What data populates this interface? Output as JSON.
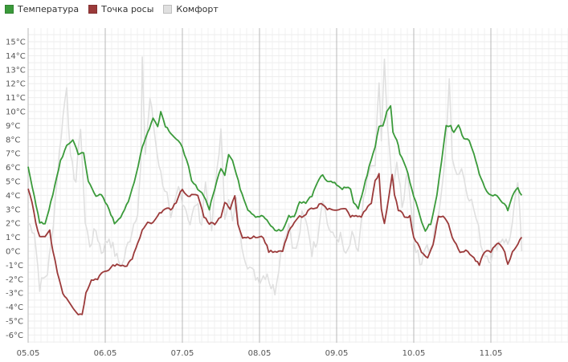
{
  "chart_data": {
    "type": "line",
    "x_categories": [
      "05.05",
      "06.05",
      "07.05",
      "08.05",
      "09.05",
      "10.05",
      "11.05"
    ],
    "ylim": [
      -6.5,
      16
    ],
    "y_ticks": [
      "-6°C",
      "-5°C",
      "-4°C",
      "-3°C",
      "-2°C",
      "-1°C",
      "0°C",
      "1°C",
      "2°C",
      "3°C",
      "4°C",
      "5°C",
      "6°C",
      "7°C",
      "8°C",
      "9°C",
      "10°C",
      "11°C",
      "12°C",
      "13°C",
      "14°C",
      "15°C"
    ],
    "y_tick_values": [
      -6,
      -5,
      -4,
      -3,
      -2,
      -1,
      0,
      1,
      2,
      3,
      4,
      5,
      6,
      7,
      8,
      9,
      10,
      11,
      12,
      13,
      14,
      15
    ],
    "y_unit": "°C",
    "grid": true,
    "legend_position": "top-left",
    "series": [
      {
        "name": "Комфорт",
        "color": "#e0e0e0",
        "points": [
          [
            0,
            2.0
          ],
          [
            0.08,
            1.5
          ],
          [
            0.15,
            -2.5
          ],
          [
            0.25,
            -1.5
          ],
          [
            0.3,
            0.5
          ],
          [
            0.38,
            5.5
          ],
          [
            0.43,
            8.5
          ],
          [
            0.5,
            12.0
          ],
          [
            0.55,
            6.5
          ],
          [
            0.62,
            5.0
          ],
          [
            0.68,
            9.0
          ],
          [
            0.74,
            2.0
          ],
          [
            0.8,
            0.5
          ],
          [
            0.88,
            1.5
          ],
          [
            0.95,
            0.0
          ],
          [
            1.05,
            1.0
          ],
          [
            1.15,
            -0.5
          ],
          [
            1.22,
            -1.0
          ],
          [
            1.32,
            1.0
          ],
          [
            1.42,
            3.0
          ],
          [
            1.46,
            6.0
          ],
          [
            1.48,
            13.5
          ],
          [
            1.52,
            7.0
          ],
          [
            1.58,
            11.0
          ],
          [
            1.65,
            8.0
          ],
          [
            1.72,
            5.5
          ],
          [
            1.8,
            4.0
          ],
          [
            1.85,
            2.0
          ],
          [
            1.95,
            4.5
          ],
          [
            2.05,
            3.0
          ],
          [
            2.1,
            2.0
          ],
          [
            2.18,
            3.5
          ],
          [
            2.25,
            2.0
          ],
          [
            2.3,
            5.0
          ],
          [
            2.38,
            1.5
          ],
          [
            2.45,
            6.0
          ],
          [
            2.5,
            8.5
          ],
          [
            2.55,
            2.5
          ],
          [
            2.6,
            4.0
          ],
          [
            2.65,
            2.0
          ],
          [
            2.7,
            3.5
          ],
          [
            2.75,
            1.0
          ],
          [
            2.82,
            -0.5
          ],
          [
            2.9,
            -1.5
          ],
          [
            3.0,
            -2.0
          ],
          [
            3.1,
            -1.5
          ],
          [
            3.15,
            -2.5
          ],
          [
            3.2,
            -2.8
          ],
          [
            3.25,
            -1.0
          ],
          [
            3.3,
            0.5
          ],
          [
            3.38,
            2.0
          ],
          [
            3.45,
            0.0
          ],
          [
            3.5,
            0.5
          ],
          [
            3.55,
            2.5
          ],
          [
            3.62,
            2.0
          ],
          [
            3.68,
            0.0
          ],
          [
            3.75,
            1.0
          ],
          [
            3.82,
            4.0
          ],
          [
            3.88,
            2.0
          ],
          [
            3.95,
            1.0
          ],
          [
            4.05,
            1.0
          ],
          [
            4.12,
            -0.5
          ],
          [
            4.2,
            1.0
          ],
          [
            4.28,
            0.0
          ],
          [
            4.35,
            3.5
          ],
          [
            4.42,
            5.5
          ],
          [
            4.5,
            6.5
          ],
          [
            4.55,
            12.0
          ],
          [
            4.58,
            8.0
          ],
          [
            4.62,
            13.5
          ],
          [
            4.66,
            9.0
          ],
          [
            4.72,
            4.5
          ],
          [
            4.78,
            6.5
          ],
          [
            4.85,
            3.0
          ],
          [
            4.92,
            6.0
          ],
          [
            5.0,
            1.0
          ],
          [
            5.08,
            -1.0
          ],
          [
            5.15,
            0.5
          ],
          [
            5.22,
            0.0
          ],
          [
            5.3,
            2.0
          ],
          [
            5.36,
            4.0
          ],
          [
            5.42,
            8.0
          ],
          [
            5.46,
            12.0
          ],
          [
            5.5,
            7.0
          ],
          [
            5.56,
            5.5
          ],
          [
            5.62,
            6.0
          ],
          [
            5.68,
            4.5
          ],
          [
            5.72,
            4.0
          ],
          [
            5.78,
            3.0
          ],
          [
            5.84,
            1.5
          ],
          [
            5.9,
            0.0
          ],
          [
            6.0,
            -0.5
          ],
          [
            6.08,
            0.5
          ],
          [
            6.15,
            1.0
          ],
          [
            6.22,
            0.5
          ],
          [
            6.28,
            2.0
          ],
          [
            6.35,
            5.0
          ],
          [
            6.4,
            0.0
          ]
        ]
      },
      {
        "name": "Температура",
        "color": "#3a9a3a",
        "points": [
          [
            0,
            6.0
          ],
          [
            0.08,
            4.0
          ],
          [
            0.15,
            2.0
          ],
          [
            0.22,
            2.0
          ],
          [
            0.32,
            4.0
          ],
          [
            0.42,
            6.5
          ],
          [
            0.5,
            7.5
          ],
          [
            0.58,
            8.0
          ],
          [
            0.65,
            7.0
          ],
          [
            0.72,
            7.0
          ],
          [
            0.78,
            5.0
          ],
          [
            0.88,
            4.0
          ],
          [
            0.95,
            4.0
          ],
          [
            1.05,
            3.0
          ],
          [
            1.12,
            2.0
          ],
          [
            1.2,
            2.5
          ],
          [
            1.3,
            3.5
          ],
          [
            1.4,
            5.5
          ],
          [
            1.48,
            7.5
          ],
          [
            1.55,
            8.5
          ],
          [
            1.62,
            9.5
          ],
          [
            1.68,
            9.0
          ],
          [
            1.72,
            10.0
          ],
          [
            1.78,
            9.0
          ],
          [
            1.85,
            8.5
          ],
          [
            1.92,
            8.0
          ],
          [
            2.0,
            7.5
          ],
          [
            2.08,
            6.0
          ],
          [
            2.12,
            5.0
          ],
          [
            2.2,
            4.5
          ],
          [
            2.28,
            4.0
          ],
          [
            2.35,
            3.0
          ],
          [
            2.42,
            4.5
          ],
          [
            2.5,
            6.0
          ],
          [
            2.55,
            5.5
          ],
          [
            2.6,
            7.0
          ],
          [
            2.65,
            6.5
          ],
          [
            2.7,
            5.5
          ],
          [
            2.75,
            4.5
          ],
          [
            2.85,
            3.0
          ],
          [
            2.95,
            2.5
          ],
          [
            3.05,
            2.5
          ],
          [
            3.12,
            2.0
          ],
          [
            3.2,
            1.5
          ],
          [
            3.25,
            1.5
          ],
          [
            3.3,
            1.5
          ],
          [
            3.38,
            2.5
          ],
          [
            3.45,
            2.5
          ],
          [
            3.52,
            3.5
          ],
          [
            3.6,
            3.5
          ],
          [
            3.68,
            4.0
          ],
          [
            3.75,
            5.0
          ],
          [
            3.82,
            5.5
          ],
          [
            3.88,
            5.0
          ],
          [
            3.95,
            5.0
          ],
          [
            4.05,
            4.5
          ],
          [
            4.12,
            4.5
          ],
          [
            4.18,
            4.5
          ],
          [
            4.22,
            3.5
          ],
          [
            4.28,
            3.0
          ],
          [
            4.35,
            4.5
          ],
          [
            4.42,
            6.0
          ],
          [
            4.5,
            7.5
          ],
          [
            4.55,
            9.0
          ],
          [
            4.6,
            9.0
          ],
          [
            4.65,
            10.0
          ],
          [
            4.7,
            10.5
          ],
          [
            4.73,
            8.5
          ],
          [
            4.78,
            8.0
          ],
          [
            4.82,
            7.0
          ],
          [
            4.9,
            6.0
          ],
          [
            5.0,
            4.0
          ],
          [
            5.08,
            2.5
          ],
          [
            5.15,
            1.5
          ],
          [
            5.22,
            2.0
          ],
          [
            5.3,
            4.0
          ],
          [
            5.36,
            6.5
          ],
          [
            5.42,
            9.0
          ],
          [
            5.48,
            9.0
          ],
          [
            5.52,
            8.5
          ],
          [
            5.58,
            9.0
          ],
          [
            5.65,
            8.0
          ],
          [
            5.72,
            8.0
          ],
          [
            5.78,
            7.0
          ],
          [
            5.85,
            5.5
          ],
          [
            5.92,
            4.5
          ],
          [
            6.0,
            4.0
          ],
          [
            6.08,
            4.0
          ],
          [
            6.15,
            3.5
          ],
          [
            6.22,
            3.0
          ],
          [
            6.28,
            4.0
          ],
          [
            6.35,
            4.5
          ],
          [
            6.4,
            4.0
          ]
        ]
      },
      {
        "name": "Точка росы",
        "color": "#9b3a3a",
        "points": [
          [
            0,
            4.5
          ],
          [
            0.05,
            3.5
          ],
          [
            0.1,
            2.0
          ],
          [
            0.15,
            1.0
          ],
          [
            0.22,
            1.0
          ],
          [
            0.28,
            1.5
          ],
          [
            0.32,
            0.0
          ],
          [
            0.38,
            -1.5
          ],
          [
            0.45,
            -3.0
          ],
          [
            0.52,
            -3.5
          ],
          [
            0.58,
            -4.0
          ],
          [
            0.65,
            -4.5
          ],
          [
            0.7,
            -4.5
          ],
          [
            0.75,
            -3.0
          ],
          [
            0.82,
            -2.0
          ],
          [
            0.9,
            -2.0
          ],
          [
            0.95,
            -1.5
          ],
          [
            1.02,
            -1.5
          ],
          [
            1.1,
            -1.0
          ],
          [
            1.2,
            -1.0
          ],
          [
            1.28,
            -1.0
          ],
          [
            1.35,
            -0.5
          ],
          [
            1.42,
            0.5
          ],
          [
            1.48,
            1.5
          ],
          [
            1.55,
            2.0
          ],
          [
            1.62,
            2.0
          ],
          [
            1.68,
            2.5
          ],
          [
            1.75,
            3.0
          ],
          [
            1.85,
            3.0
          ],
          [
            1.92,
            3.5
          ],
          [
            2.0,
            4.5
          ],
          [
            2.05,
            4.0
          ],
          [
            2.12,
            4.0
          ],
          [
            2.2,
            4.0
          ],
          [
            2.28,
            2.5
          ],
          [
            2.35,
            2.0
          ],
          [
            2.42,
            2.0
          ],
          [
            2.5,
            2.5
          ],
          [
            2.55,
            3.5
          ],
          [
            2.62,
            3.0
          ],
          [
            2.68,
            4.0
          ],
          [
            2.72,
            2.0
          ],
          [
            2.78,
            1.0
          ],
          [
            2.85,
            1.0
          ],
          [
            2.95,
            1.0
          ],
          [
            3.05,
            1.0
          ],
          [
            3.12,
            0.0
          ],
          [
            3.2,
            0.0
          ],
          [
            3.3,
            0.0
          ],
          [
            3.38,
            1.5
          ],
          [
            3.45,
            2.0
          ],
          [
            3.52,
            2.5
          ],
          [
            3.58,
            2.5
          ],
          [
            3.65,
            3.0
          ],
          [
            3.72,
            3.0
          ],
          [
            3.8,
            3.5
          ],
          [
            3.88,
            3.0
          ],
          [
            3.95,
            3.0
          ],
          [
            4.05,
            3.0
          ],
          [
            4.12,
            3.0
          ],
          [
            4.18,
            2.5
          ],
          [
            4.25,
            2.5
          ],
          [
            4.32,
            2.5
          ],
          [
            4.38,
            3.0
          ],
          [
            4.45,
            3.5
          ],
          [
            4.5,
            5.0
          ],
          [
            4.55,
            5.5
          ],
          [
            4.58,
            3.0
          ],
          [
            4.62,
            2.0
          ],
          [
            4.68,
            4.0
          ],
          [
            4.72,
            5.5
          ],
          [
            4.75,
            4.0
          ],
          [
            4.8,
            3.0
          ],
          [
            4.88,
            2.5
          ],
          [
            4.95,
            2.5
          ],
          [
            5.0,
            1.0
          ],
          [
            5.05,
            0.5
          ],
          [
            5.1,
            0.0
          ],
          [
            5.18,
            -0.5
          ],
          [
            5.25,
            0.5
          ],
          [
            5.32,
            2.5
          ],
          [
            5.38,
            2.5
          ],
          [
            5.45,
            2.0
          ],
          [
            5.5,
            1.0
          ],
          [
            5.55,
            0.5
          ],
          [
            5.6,
            0.0
          ],
          [
            5.7,
            0.0
          ],
          [
            5.78,
            -0.5
          ],
          [
            5.85,
            -1.0
          ],
          [
            5.92,
            0.0
          ],
          [
            6.0,
            0.0
          ],
          [
            6.08,
            0.5
          ],
          [
            6.12,
            0.5
          ],
          [
            6.18,
            0.0
          ],
          [
            6.22,
            -1.0
          ],
          [
            6.28,
            0.0
          ],
          [
            6.35,
            0.5
          ],
          [
            6.4,
            1.0
          ]
        ]
      }
    ]
  },
  "legend": {
    "items": [
      {
        "label": "Температура",
        "color": "#3a9a3a"
      },
      {
        "label": "Точка росы",
        "color": "#9b3a3a"
      },
      {
        "label": "Комфорт",
        "color": "#e0e0e0"
      }
    ]
  }
}
